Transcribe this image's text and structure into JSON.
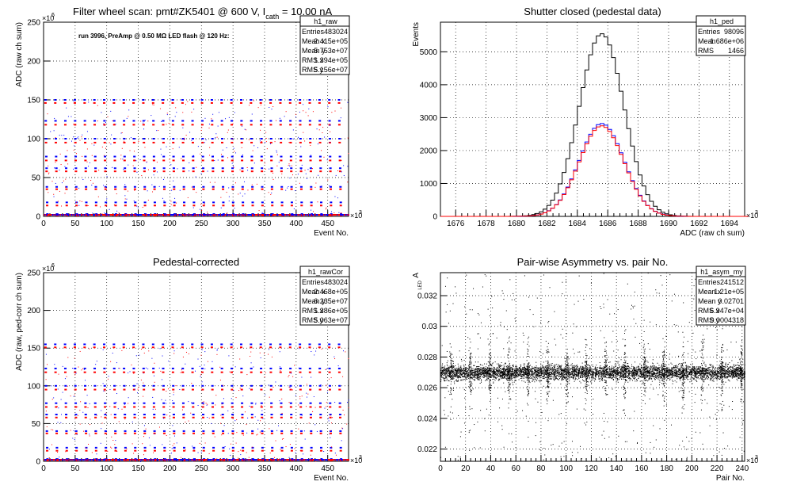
{
  "chart_data": [
    {
      "id": "raw",
      "type": "scatter",
      "title": "Filter wheel scan: pmt#ZK5401 @   600 V, I",
      "title_sub": "cath",
      "title_tail": " = 10.00 nA",
      "annotation": "run 3996, PreAmp @ 0.50 MΩ LED flash @  120 Hz:",
      "xlabel": "Event No.",
      "ylabel": "ADC (raw ch sum)",
      "x_multiplier": "×10",
      "x_multiplier_exp": "3",
      "y_multiplier": "×10",
      "y_multiplier_exp": "6",
      "xlim": [
        0,
        483
      ],
      "ylim": [
        0,
        250
      ],
      "x_ticks": [
        0,
        50,
        100,
        150,
        200,
        250,
        300,
        350,
        400,
        450
      ],
      "y_ticks": [
        0,
        50,
        100,
        150,
        200,
        250
      ],
      "grid": true,
      "stats": {
        "name": "h1_raw",
        "rows": [
          [
            "Entries",
            "483024"
          ],
          [
            "Mean x",
            "2.415e+05"
          ],
          [
            "Mean y",
            "5.753e+07"
          ],
          [
            "RMS x",
            "1.394e+05"
          ],
          [
            "RMS y",
            "5.156e+07"
          ]
        ]
      },
      "levels_blue": [
        150,
        123,
        100,
        77,
        62,
        38,
        18,
        3
      ],
      "levels_red": [
        146,
        118,
        95,
        72,
        58,
        35,
        14,
        1
      ],
      "period": 15.5,
      "colors": {
        "blue": "#0000ff",
        "red": "#ff0000"
      }
    },
    {
      "id": "ped",
      "type": "line",
      "title": "Shutter closed (pedestal data)",
      "xlabel": "ADC (raw ch sum)",
      "ylabel": "Events",
      "x_multiplier": "×10",
      "x_multiplier_exp": "3",
      "xlim": [
        1675,
        1695
      ],
      "ylim": [
        0,
        5900
      ],
      "x_ticks": [
        1676,
        1678,
        1680,
        1682,
        1684,
        1686,
        1688,
        1690,
        1692,
        1694
      ],
      "y_ticks": [
        0,
        1000,
        2000,
        3000,
        4000,
        5000
      ],
      "grid": true,
      "stats": {
        "name": "h1_ped",
        "rows": [
          [
            "Entries",
            "98096"
          ],
          [
            "Mean",
            "1.686e+06"
          ],
          [
            "RMS",
            "1466"
          ]
        ]
      },
      "series": [
        {
          "color": "#000000",
          "peak": 5550,
          "mean": 1685.6,
          "sigma": 1.466
        },
        {
          "color": "#0000ff",
          "peak": 2820,
          "mean": 1685.6,
          "sigma": 1.466
        },
        {
          "color": "#ff0000",
          "peak": 2750,
          "mean": 1685.6,
          "sigma": 1.466
        }
      ]
    },
    {
      "id": "rawCor",
      "type": "scatter",
      "title": "Pedestal-corrected",
      "xlabel": "Event No.",
      "ylabel": "ADC (raw, ped-corr ch sum)",
      "x_multiplier": "×10",
      "x_multiplier_exp": "3",
      "y_multiplier": "×10",
      "y_multiplier_exp": "6",
      "xlim": [
        0,
        483
      ],
      "ylim": [
        0,
        250
      ],
      "x_ticks": [
        0,
        50,
        100,
        150,
        200,
        250,
        300,
        350,
        400,
        450
      ],
      "y_ticks": [
        0,
        50,
        100,
        150,
        200,
        250
      ],
      "grid": true,
      "stats": {
        "name": "h1_rawCor",
        "rows": [
          [
            "Entries",
            "483024"
          ],
          [
            "Mean x",
            "2.468e+05"
          ],
          [
            "Mean y",
            "6.235e+07"
          ],
          [
            "RMS x",
            "1.386e+05"
          ],
          [
            "RMS y",
            "5.063e+07"
          ]
        ]
      },
      "levels_blue": [
        155,
        123,
        100,
        77,
        62,
        40,
        18,
        3
      ],
      "levels_red": [
        151,
        118,
        95,
        72,
        58,
        37,
        14,
        1
      ],
      "period": 15.5,
      "colors": {
        "blue": "#0000ff",
        "red": "#ff0000"
      }
    },
    {
      "id": "asym",
      "type": "scatter",
      "title": "Pair-wise Asymmetry vs. pair No.",
      "xlabel": "Pair No.",
      "ylabel": "A",
      "ylabel_sub": "LED",
      "x_multiplier": "×10",
      "x_multiplier_exp": "3",
      "xlim": [
        0,
        242
      ],
      "ylim": [
        0.0212,
        0.0335
      ],
      "x_ticks": [
        0,
        20,
        40,
        60,
        80,
        100,
        120,
        140,
        160,
        180,
        200,
        220,
        240
      ],
      "y_ticks": [
        0.022,
        0.024,
        0.026,
        0.028,
        0.03,
        0.032
      ],
      "y_tick_labels": [
        "0.022",
        "0.024",
        "0.026",
        "0.028",
        "0.03",
        "0.032"
      ],
      "grid": true,
      "stats": {
        "name": "h1_asym_my",
        "rows": [
          [
            "Entries",
            "241512"
          ],
          [
            "Mean x",
            "1.21e+05"
          ],
          [
            "Mean y",
            "0.02701"
          ],
          [
            "RMS x",
            "6.947e+04"
          ],
          [
            "RMS y",
            "0.0004318"
          ]
        ]
      },
      "band_center": 0.02701,
      "band_rms": 0.00043,
      "spike_period": 15.4,
      "colors": {
        "points": "#000000"
      }
    }
  ]
}
